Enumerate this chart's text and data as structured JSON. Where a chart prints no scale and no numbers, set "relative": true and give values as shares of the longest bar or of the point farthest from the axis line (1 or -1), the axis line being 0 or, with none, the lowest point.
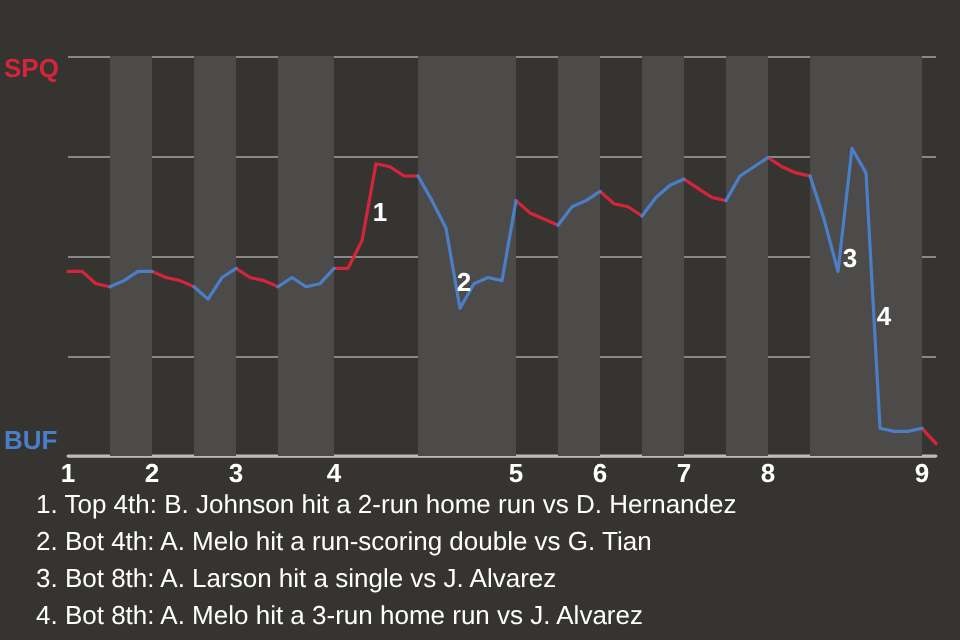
{
  "chart_data": {
    "type": "line",
    "categories": [
      "1",
      null,
      null,
      null,
      null,
      null,
      "2",
      null,
      null,
      null,
      null,
      null,
      "3",
      null,
      null,
      null,
      null,
      null,
      null,
      "4",
      null,
      null,
      null,
      null,
      null,
      null,
      null,
      null,
      null,
      null,
      null,
      null,
      "5",
      null,
      null,
      null,
      null,
      null,
      "6",
      null,
      null,
      null,
      null,
      null,
      "7",
      null,
      null,
      null,
      null,
      null,
      "8",
      null,
      null,
      null,
      null,
      null,
      null,
      null,
      null,
      null,
      null,
      "9",
      null
    ],
    "relative": true,
    "series": [
      {
        "color": "#d6253a",
        "values": [
          0.6,
          0.6,
          0.56,
          0.55,
          null,
          null,
          0.6,
          0.58,
          0.57,
          0.55,
          null,
          null,
          0.61,
          0.58,
          0.57,
          0.55,
          null,
          null,
          null,
          0.61,
          0.61,
          0.7,
          0.95,
          0.94,
          0.91,
          0.91,
          null,
          null,
          null,
          null,
          null,
          null,
          0.83,
          0.79,
          0.77,
          0.75,
          null,
          null,
          0.86,
          0.82,
          0.81,
          0.78,
          null,
          null,
          0.9,
          0.87,
          0.84,
          0.83,
          null,
          null,
          0.97,
          0.94,
          0.92,
          0.91,
          null,
          null,
          null,
          null,
          null,
          null,
          null,
          0.09,
          0.04
        ]
      },
      {
        "color": "#4a7fc8",
        "values": [
          null,
          null,
          null,
          0.55,
          0.57,
          0.6,
          0.6,
          null,
          null,
          0.55,
          0.51,
          0.58,
          0.61,
          null,
          null,
          0.55,
          0.58,
          0.55,
          0.56,
          0.61,
          null,
          null,
          null,
          null,
          null,
          0.91,
          0.83,
          0.74,
          0.48,
          0.56,
          0.58,
          0.57,
          0.83,
          null,
          null,
          0.75,
          0.81,
          0.83,
          0.86,
          null,
          null,
          0.78,
          0.84,
          0.88,
          0.9,
          null,
          null,
          0.83,
          0.91,
          0.94,
          0.97,
          null,
          null,
          0.91,
          0.77,
          0.6,
          1,
          0.92,
          0.09,
          0.08,
          0.08,
          0.09,
          null
        ]
      }
    ],
    "grid": "y",
    "marker": "none",
    "annotations": [
      "SPQ",
      "BUF",
      "1",
      "2",
      "3",
      "4",
      "1. Top 4th: B. Johnson hit a 2-run home run vs D. Hernandez",
      "2. Bot 4th: A. Melo hit a run-scoring double vs G. Tian",
      "3. Bot 8th: A. Larson hit a single vs J. Alvarez",
      "4. Bot 8th: A. Melo hit a 3-run home run vs J. Alvarez"
    ]
  }
}
